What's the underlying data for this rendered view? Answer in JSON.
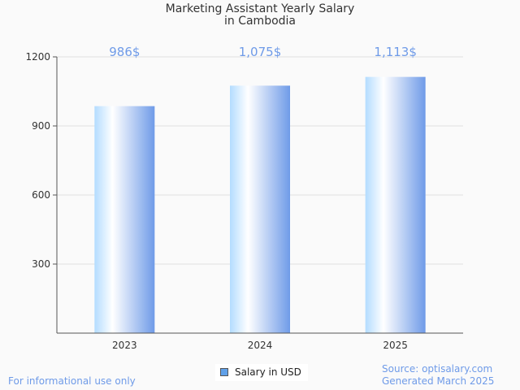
{
  "chart_data": {
    "type": "bar",
    "title": [
      "Marketing Assistant Yearly Salary",
      "in Cambodia"
    ],
    "categories": [
      "2023",
      "2024",
      "2025"
    ],
    "values": [
      986,
      1075,
      1113
    ],
    "data_labels": [
      "986$",
      "1,075$",
      "1,113$"
    ],
    "yticks": [
      300,
      600,
      900,
      1200
    ],
    "ylim": [
      0,
      1200
    ],
    "xlabel": "",
    "ylabel": "",
    "grid": true,
    "legend": {
      "label": "Salary in USD",
      "placement": "bottom-center"
    },
    "colors": {
      "bar_light": "#b3dcff",
      "bar_dark": "#6f9be8",
      "label": "#6f9be8"
    }
  },
  "footer": {
    "left": "For informational use only",
    "source": "Source: optisalary.com",
    "generated": "Generated March 2025"
  }
}
